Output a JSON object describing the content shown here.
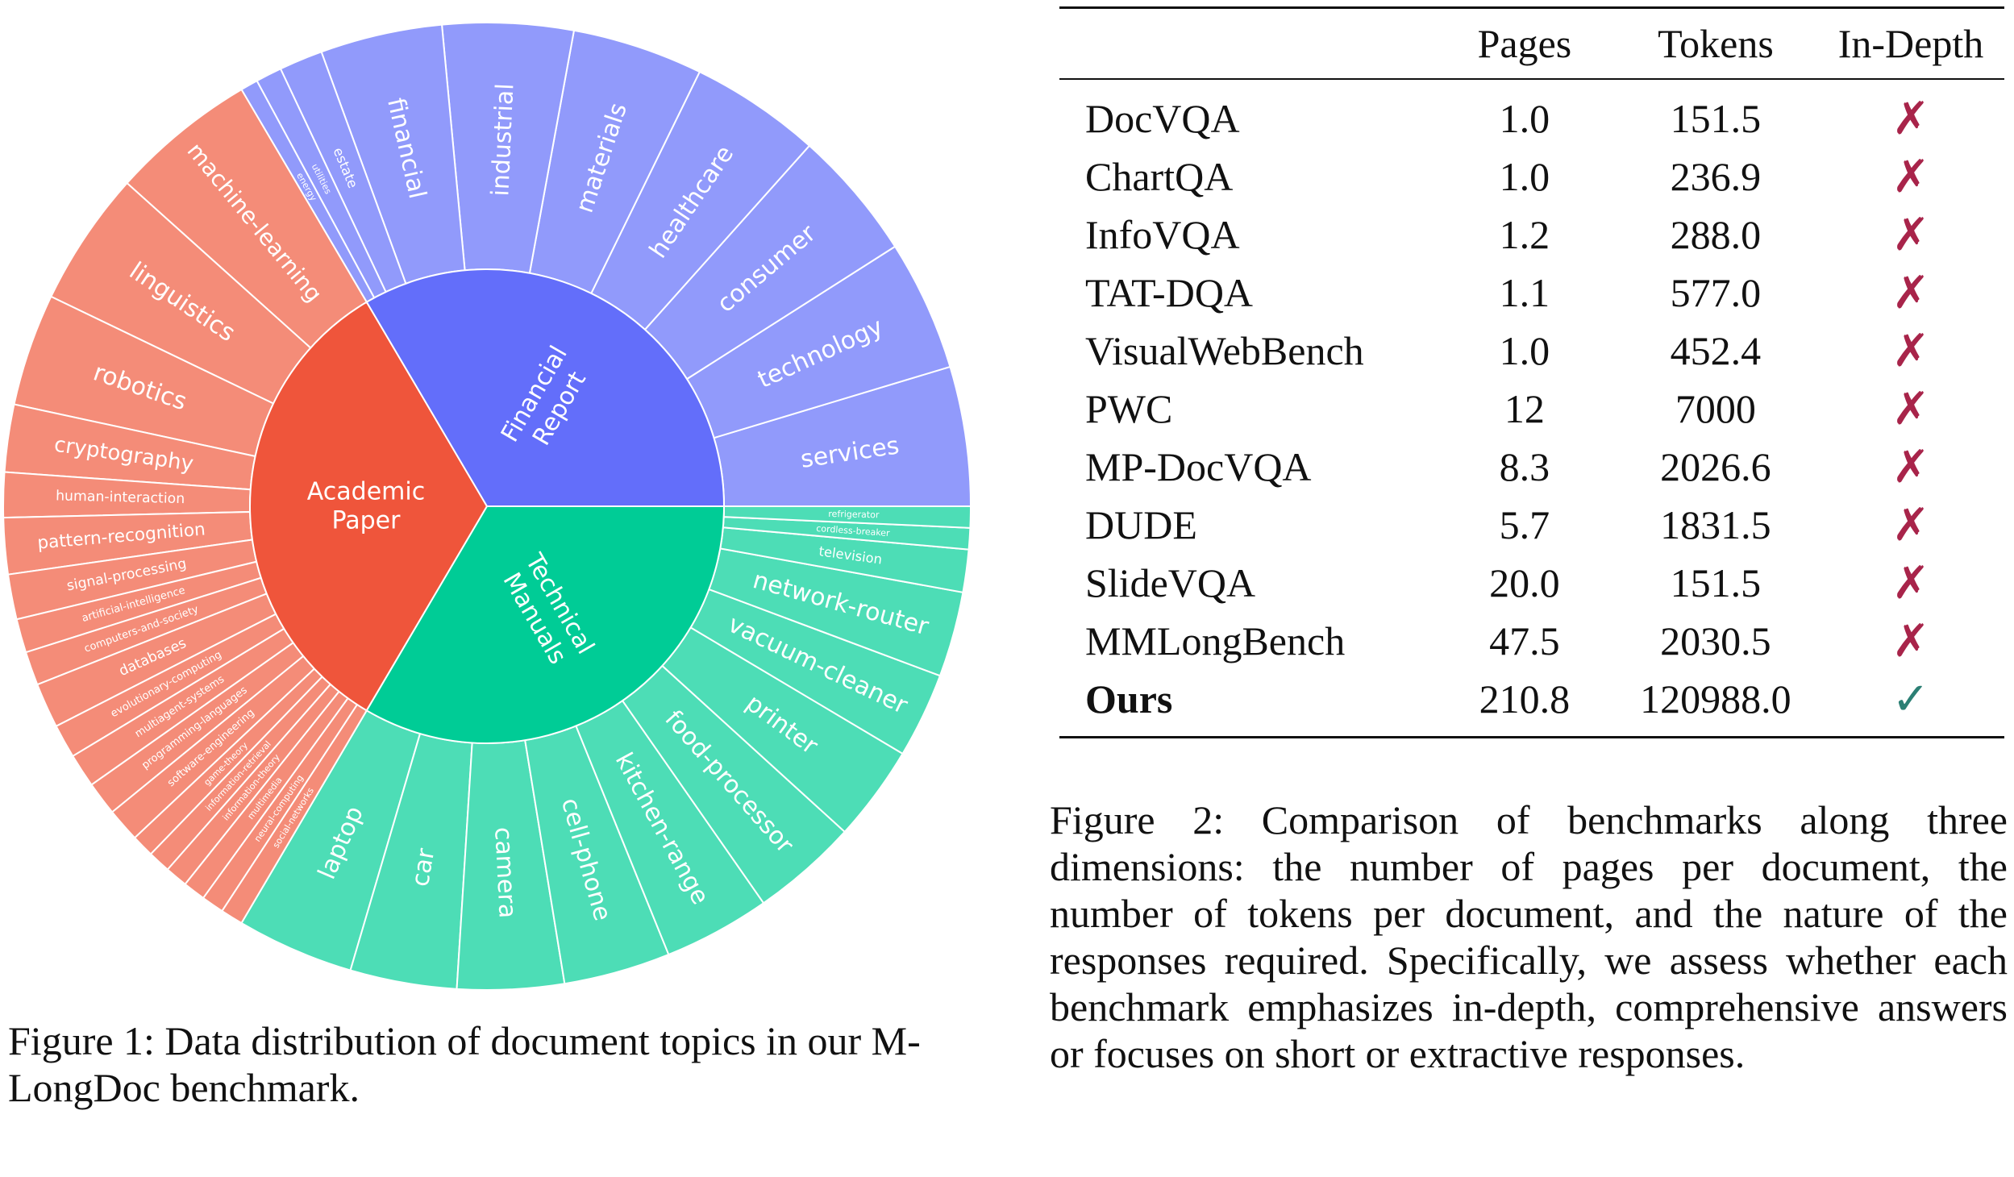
{
  "figure1": {
    "caption": "Figure 1: Data distribution of document topics in our M-LongDoc benchmark.",
    "colors": {
      "academic_inner": "#ef553b",
      "academic_outer": "#f48c78",
      "financial_inner": "#636efa",
      "financial_outer": "#919afb",
      "technical_inner": "#00cc96",
      "technical_outer": "#4dddb6",
      "stroke": "#ffffff"
    },
    "sunburst": {
      "inner": [
        {
          "id": "academic",
          "label_lines": [
            "Academic",
            "Paper"
          ]
        },
        {
          "id": "financial",
          "label_lines": [
            "Financial",
            "Report"
          ]
        },
        {
          "id": "technical",
          "label_lines": [
            "Technical",
            "Manuals"
          ]
        }
      ],
      "outer": {
        "financial": [
          "services",
          "technology",
          "consumer",
          "healthcare",
          "materials",
          "industrial",
          "financial",
          "estate",
          "utilities",
          "energy"
        ],
        "academic": [
          "machine-learning",
          "linguistics",
          "robotics",
          "cryptography",
          "human-interaction",
          "pattern-recognition",
          "signal-processing",
          "artificial-intelligence",
          "computers-and-society",
          "databases",
          "evolutionary-computing",
          "multiagent-systems",
          "programming-languages",
          "software-engineering",
          "game-theory",
          "information-retrieval",
          "information-theory",
          "multimedia",
          "neural-computing",
          "social-networks"
        ],
        "technical": [
          "laptop",
          "car",
          "camera",
          "cell-phone",
          "kitchen-range",
          "food-processor",
          "printer",
          "vacuum-cleaner",
          "network-router",
          "television",
          "cordless-breaker",
          "refrigerator"
        ]
      }
    }
  },
  "figure2": {
    "caption": "Figure 2: Comparison of benchmarks along three dimensions: the number of pages per document, the number of tokens per document, and the nature of the responses required. Specifically, we assess whether each benchmark emphasizes in-depth, comprehensive answers or focuses on short or extractive responses.",
    "table": {
      "headers": [
        "",
        "Pages",
        "Tokens",
        "In-Depth"
      ],
      "rows": [
        {
          "name": "DocVQA",
          "pages": "1.0",
          "tokens": "151.5",
          "in_depth": "✗"
        },
        {
          "name": "ChartQA",
          "pages": "1.0",
          "tokens": "236.9",
          "in_depth": "✗"
        },
        {
          "name": "InfoVQA",
          "pages": "1.2",
          "tokens": "288.0",
          "in_depth": "✗"
        },
        {
          "name": "TAT-DQA",
          "pages": "1.1",
          "tokens": "577.0",
          "in_depth": "✗"
        },
        {
          "name": "VisualWebBench",
          "pages": "1.0",
          "tokens": "452.4",
          "in_depth": "✗"
        },
        {
          "name": "PWC",
          "pages": "12",
          "tokens": "7000",
          "in_depth": "✗"
        },
        {
          "name": "MP-DocVQA",
          "pages": "8.3",
          "tokens": "2026.6",
          "in_depth": "✗"
        },
        {
          "name": "DUDE",
          "pages": "5.7",
          "tokens": "1831.5",
          "in_depth": "✗"
        },
        {
          "name": "SlideVQA",
          "pages": "20.0",
          "tokens": "151.5",
          "in_depth": "✗"
        },
        {
          "name": "MMLongBench",
          "pages": "47.5",
          "tokens": "2030.5",
          "in_depth": "✗"
        },
        {
          "name": "Ours",
          "pages": "210.8",
          "tokens": "120988.0",
          "in_depth": "✓"
        }
      ],
      "mark_colors": {
        "cross": "#a8244a",
        "check": "#2b7f74"
      }
    }
  }
}
